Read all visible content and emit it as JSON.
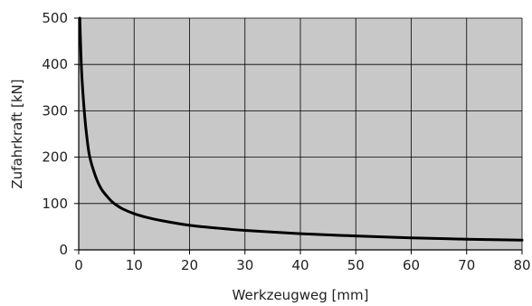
{
  "chart_data": {
    "type": "line",
    "title": "",
    "xlabel": "Werkzeugweg [mm]",
    "ylabel": "Zufahrkraft [kN]",
    "xlim": [
      0,
      80
    ],
    "ylim": [
      0,
      500
    ],
    "x_ticks": [
      0,
      10,
      20,
      30,
      40,
      50,
      60,
      70,
      80
    ],
    "y_ticks": [
      0,
      100,
      200,
      300,
      400,
      500
    ],
    "grid": true,
    "legend": "none",
    "colors": {
      "plot_background": "#c8c8c8",
      "grid": "#000000",
      "line": "#000000"
    },
    "series": [
      {
        "x": [
          0.2,
          0.5,
          1,
          1.5,
          2,
          3,
          4,
          5,
          6,
          7,
          8,
          10,
          12,
          15,
          20,
          25,
          30,
          40,
          50,
          60,
          70,
          80
        ],
        "y": [
          500,
          390,
          300,
          240,
          200,
          160,
          133,
          117,
          104,
          95,
          88,
          78,
          71,
          63,
          53,
          47,
          42,
          35,
          30,
          26,
          23,
          21
        ]
      }
    ]
  }
}
